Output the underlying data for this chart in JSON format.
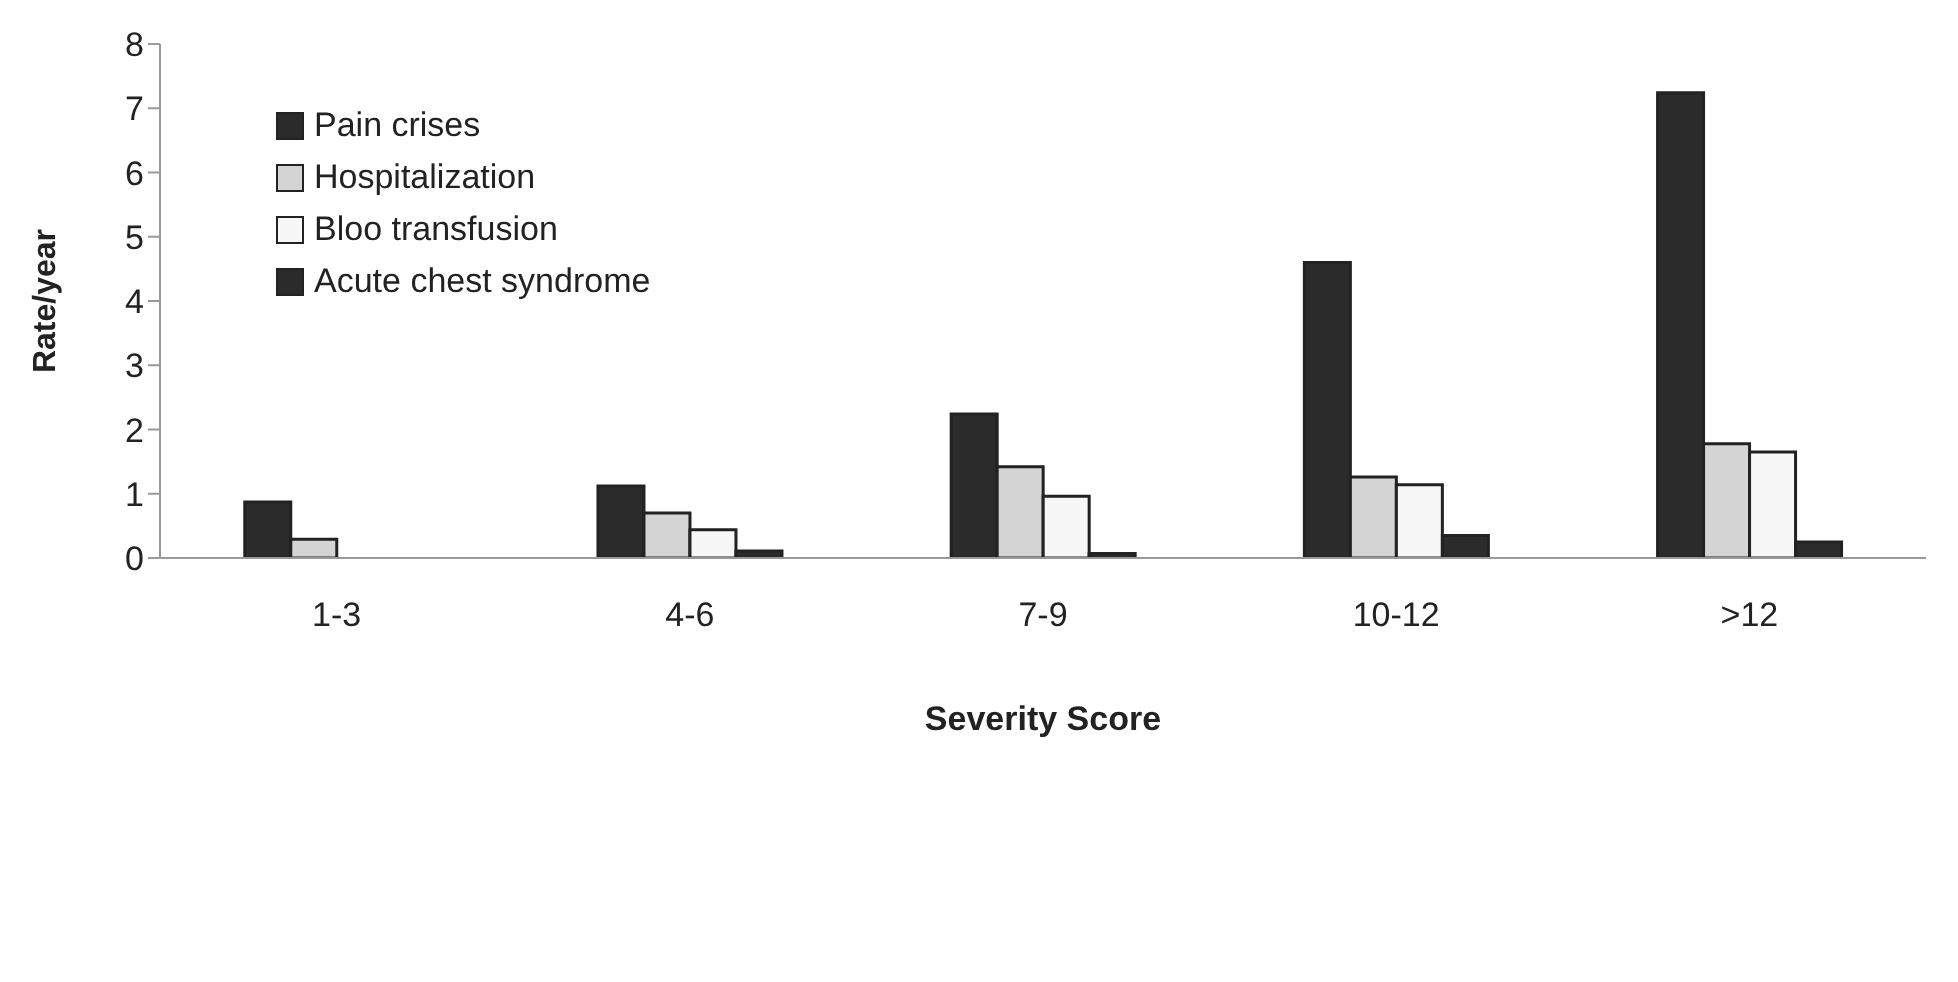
{
  "chart_data": {
    "type": "bar",
    "xlabel": "Severity Score",
    "ylabel": "Rate/year",
    "categories": [
      "1-3",
      "4-6",
      "7-9",
      "10-12",
      ">12"
    ],
    "series": [
      {
        "name": "Pain crises",
        "color": "#2b2b2b",
        "values": [
          0.87,
          1.12,
          2.24,
          4.6,
          7.24
        ]
      },
      {
        "name": "Hospitalization",
        "color": "#d4d4d4",
        "values": [
          0.29,
          0.7,
          1.42,
          1.26,
          1.78
        ]
      },
      {
        "name": "Bloo transfusion",
        "color": "#f7f7f7",
        "values": [
          0,
          0.44,
          0.96,
          1.14,
          1.65
        ]
      },
      {
        "name": "Acute chest syndrome",
        "color": "#2b2b2b",
        "values": [
          0,
          0.11,
          0.07,
          0.35,
          0.25
        ]
      }
    ],
    "ylim": [
      0,
      8
    ],
    "yticks": [
      0,
      1,
      2,
      3,
      4,
      5,
      6,
      7,
      8
    ],
    "grid": false,
    "legend": "top left"
  }
}
